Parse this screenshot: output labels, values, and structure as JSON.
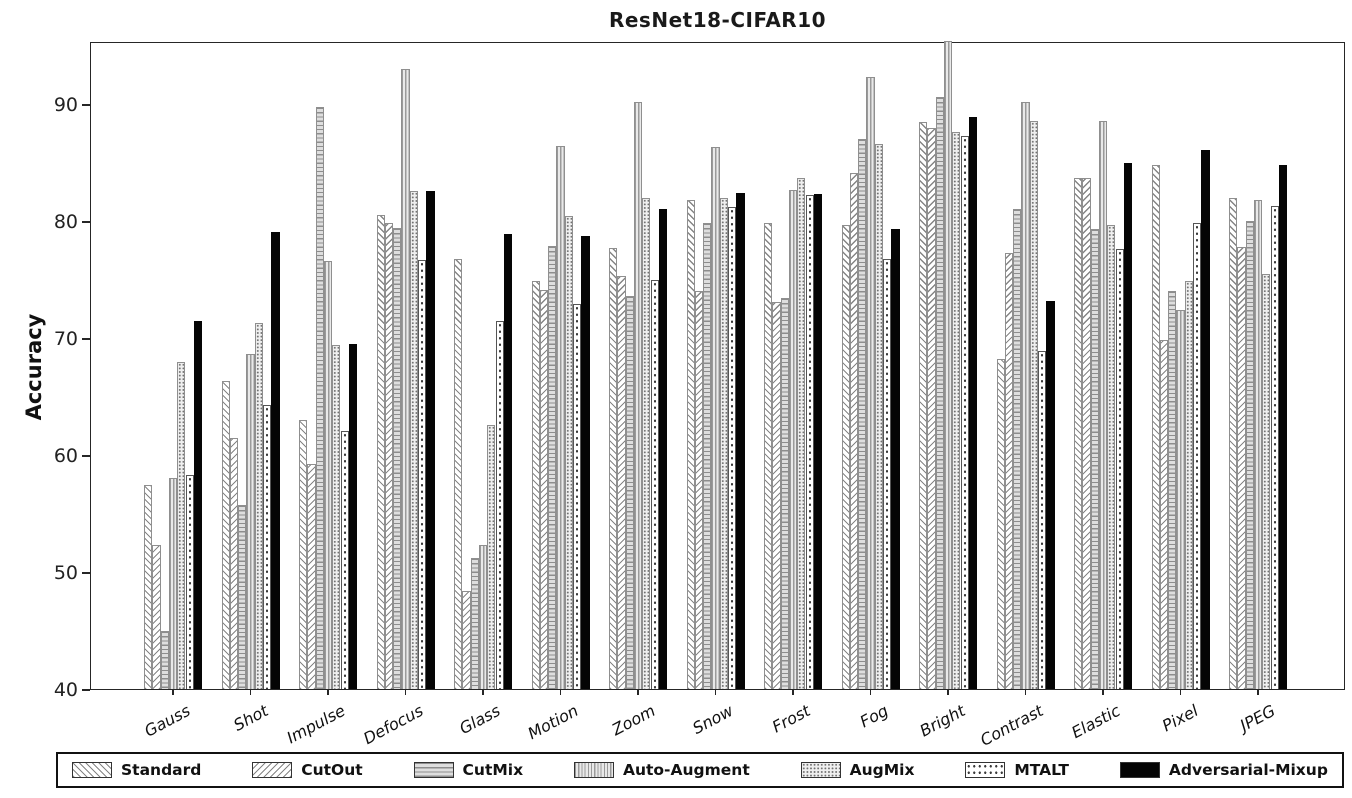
{
  "chart_data": {
    "type": "bar",
    "title": "ResNet18-CIFAR10",
    "xlabel": "",
    "ylabel": "Accuracy",
    "ylim": [
      40,
      95.4
    ],
    "yticks": [
      40,
      50,
      60,
      70,
      80,
      90
    ],
    "grid": false,
    "legend_position": "bottom",
    "categories": [
      "Gauss",
      "Shot",
      "Impulse",
      "Defocus",
      "Glass",
      "Motion",
      "Zoom",
      "Snow",
      "Frost",
      "Fog",
      "Bright",
      "Contrast",
      "Elastic",
      "Pixel",
      "JPEG"
    ],
    "series": [
      {
        "name": "Standard",
        "pattern": "diag-right",
        "values": [
          57.4,
          66.3,
          63.0,
          80.5,
          76.8,
          74.9,
          77.7,
          81.8,
          79.8,
          79.7,
          88.5,
          68.2,
          83.7,
          84.8,
          82.0
        ]
      },
      {
        "name": "CutOut",
        "pattern": "diag-left",
        "values": [
          52.3,
          61.5,
          59.2,
          79.8,
          48.4,
          74.1,
          75.3,
          74.0,
          73.1,
          84.1,
          88.0,
          77.3,
          83.7,
          69.8,
          77.8
        ]
      },
      {
        "name": "CutMix",
        "pattern": "horiz",
        "values": [
          45.0,
          55.7,
          89.8,
          79.4,
          51.2,
          77.9,
          73.6,
          79.8,
          73.4,
          87.0,
          90.6,
          81.0,
          79.3,
          74.0,
          80.0
        ]
      },
      {
        "name": "Auto-Augment",
        "pattern": "vert",
        "values": [
          58.0,
          68.6,
          76.6,
          93.0,
          52.3,
          86.4,
          90.2,
          86.3,
          82.7,
          92.3,
          95.5,
          90.2,
          88.6,
          72.4,
          81.8
        ]
      },
      {
        "name": "AugMix",
        "pattern": "fine-dots",
        "values": [
          68.0,
          71.3,
          69.4,
          82.6,
          62.6,
          80.4,
          82.0,
          82.0,
          83.7,
          86.6,
          87.6,
          88.6,
          79.7,
          74.9,
          75.5
        ]
      },
      {
        "name": "MTALT",
        "pattern": "sparse-dots",
        "values": [
          58.3,
          64.3,
          62.1,
          76.7,
          71.5,
          72.9,
          75.0,
          81.2,
          82.2,
          76.8,
          87.3,
          68.9,
          77.6,
          79.8,
          81.3
        ]
      },
      {
        "name": "Adversarial-Mixup",
        "pattern": "solid-black",
        "values": [
          71.5,
          79.1,
          69.5,
          82.6,
          78.9,
          78.7,
          81.0,
          82.4,
          82.3,
          79.3,
          88.9,
          73.2,
          85.0,
          86.1,
          84.8
        ]
      }
    ]
  }
}
